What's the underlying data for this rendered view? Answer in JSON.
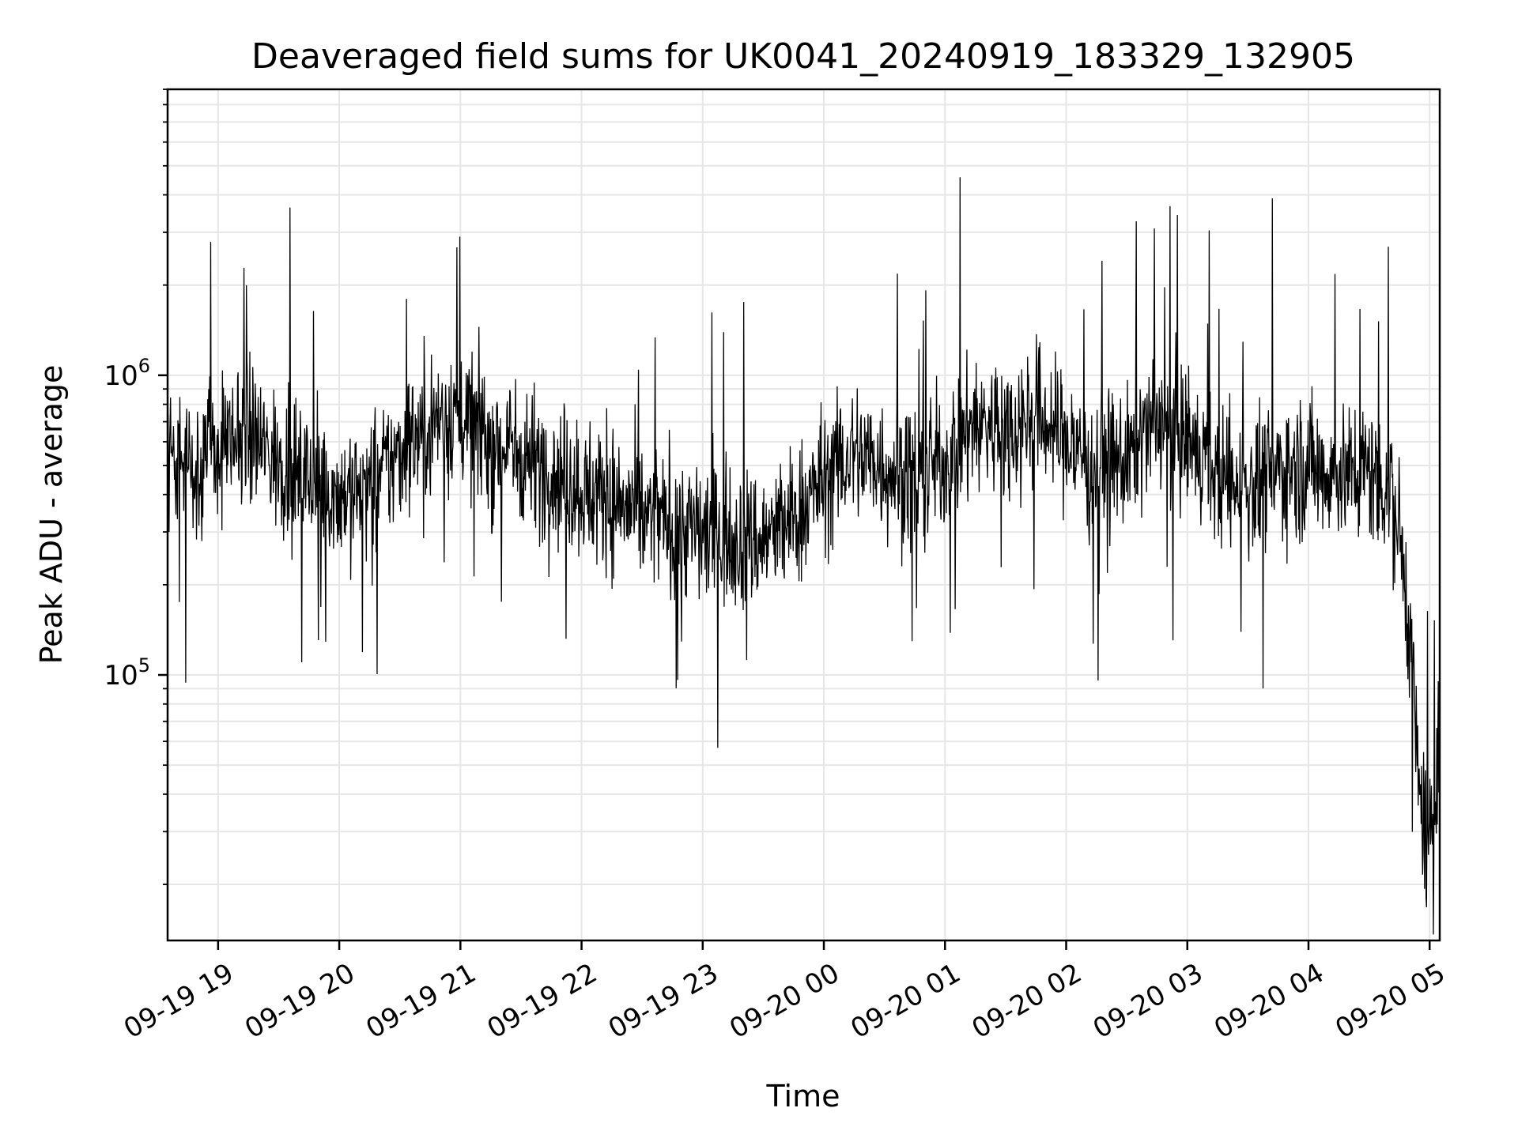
{
  "chart_data": {
    "type": "line",
    "title": "Deaveraged field sums for UK0041_20240919_183329_132905",
    "xlabel": "Time",
    "ylabel": "Peak ADU - average",
    "x_scale": "time",
    "y_scale": "log",
    "xlim": [
      "2024-09-19 18:35",
      "2024-09-20 05:05"
    ],
    "ylim": [
      13000,
      9000000
    ],
    "grid": "on (major and minor)",
    "legend": "none",
    "line_color": "#000000",
    "x_tick_labels": [
      "09-19 19",
      "09-19 20",
      "09-19 21",
      "09-19 22",
      "09-19 23",
      "09-20 00",
      "09-20 01",
      "09-20 02",
      "09-20 03",
      "09-20 04",
      "09-20 05"
    ],
    "x_ticks": [
      "2024-09-19 19:00",
      "2024-09-19 20:00",
      "2024-09-19 21:00",
      "2024-09-19 22:00",
      "2024-09-19 23:00",
      "2024-09-20 00:00",
      "2024-09-20 01:00",
      "2024-09-20 02:00",
      "2024-09-20 03:00",
      "2024-09-20 04:00",
      "2024-09-20 05:00"
    ],
    "y_ticks": [
      {
        "value": 100000,
        "base": "10",
        "exp": "5"
      },
      {
        "value": 1000000,
        "base": "10",
        "exp": "6"
      }
    ],
    "series": [
      {
        "x": [
          "2024-09-19 18:35",
          "2024-09-19 18:45",
          "2024-09-19 19:00",
          "2024-09-19 19:15",
          "2024-09-19 19:30",
          "2024-09-19 19:45",
          "2024-09-19 20:00",
          "2024-09-19 20:15",
          "2024-09-19 20:30",
          "2024-09-19 20:45",
          "2024-09-19 21:00",
          "2024-09-19 21:15",
          "2024-09-19 21:30",
          "2024-09-19 21:45",
          "2024-09-19 22:00",
          "2024-09-19 22:15",
          "2024-09-19 22:30",
          "2024-09-19 22:45",
          "2024-09-19 23:00",
          "2024-09-19 23:15",
          "2024-09-19 23:30",
          "2024-09-19 23:45",
          "2024-09-20 00:00",
          "2024-09-20 00:15",
          "2024-09-20 00:30",
          "2024-09-20 00:45",
          "2024-09-20 01:00",
          "2024-09-20 01:15",
          "2024-09-20 01:30",
          "2024-09-20 01:45",
          "2024-09-20 02:00",
          "2024-09-20 02:15",
          "2024-09-20 02:30",
          "2024-09-20 02:45",
          "2024-09-20 03:00",
          "2024-09-20 03:15",
          "2024-09-20 03:30",
          "2024-09-20 03:45",
          "2024-09-20 04:00",
          "2024-09-20 04:15",
          "2024-09-20 04:30",
          "2024-09-20 04:40",
          "2024-09-20 04:45",
          "2024-09-20 04:50",
          "2024-09-20 04:55",
          "2024-09-20 05:00",
          "2024-09-20 05:05"
        ],
        "values": [
          600000,
          500000,
          550000,
          650000,
          500000,
          450000,
          400000,
          420000,
          550000,
          700000,
          750000,
          600000,
          550000,
          480000,
          420000,
          380000,
          340000,
          320000,
          300000,
          290000,
          280000,
          330000,
          450000,
          550000,
          500000,
          450000,
          520000,
          700000,
          650000,
          750000,
          600000,
          500000,
          520000,
          700000,
          600000,
          450000,
          420000,
          480000,
          500000,
          470000,
          480000,
          420000,
          300000,
          150000,
          40000,
          25000,
          70000
        ]
      }
    ]
  }
}
